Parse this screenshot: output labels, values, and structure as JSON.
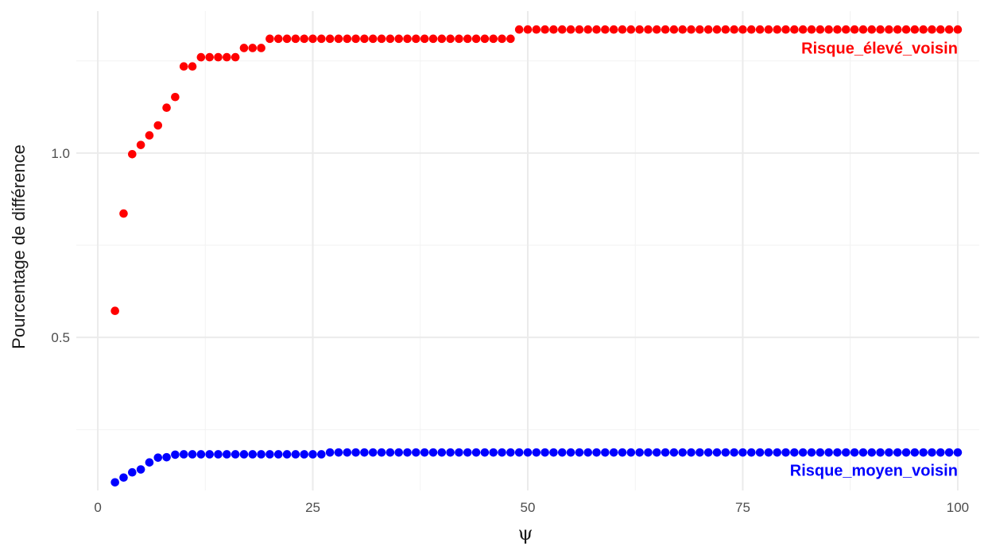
{
  "chart_data": {
    "type": "scatter",
    "xlabel": "ψ",
    "ylabel": "Pourcentage de différence",
    "xlim": [
      -2.5,
      102.5
    ],
    "ylim": [
      0.085,
      1.385
    ],
    "x_ticks": [
      0,
      25,
      50,
      75,
      100
    ],
    "y_ticks": [
      0.5,
      1.0
    ],
    "y_tick_labels": [
      "0.5",
      "1.0"
    ],
    "grid": true,
    "series": [
      {
        "name": "Risque_élevé_voisin",
        "color": "#ff0000",
        "x_start": 2,
        "y": [
          0.572,
          0.836,
          0.997,
          1.022,
          1.048,
          1.075,
          1.123,
          1.152,
          1.235,
          1.235,
          1.26,
          1.26,
          1.26,
          1.26,
          1.26,
          1.285,
          1.285,
          1.285,
          1.31,
          1.31,
          1.31,
          1.31,
          1.31,
          1.31,
          1.31,
          1.31,
          1.31,
          1.31,
          1.31,
          1.31,
          1.31,
          1.31,
          1.31,
          1.31,
          1.31,
          1.31,
          1.31,
          1.31,
          1.31,
          1.31,
          1.31,
          1.31,
          1.31,
          1.31,
          1.31,
          1.31,
          1.31,
          1.335,
          1.335,
          1.335,
          1.335,
          1.335,
          1.335,
          1.335,
          1.335,
          1.335,
          1.335,
          1.335,
          1.335,
          1.335,
          1.335,
          1.335,
          1.335,
          1.335,
          1.335,
          1.335,
          1.335,
          1.335,
          1.335,
          1.335,
          1.335,
          1.335,
          1.335,
          1.335,
          1.335,
          1.335,
          1.335,
          1.335,
          1.335,
          1.335,
          1.335,
          1.335,
          1.335,
          1.335,
          1.335,
          1.335,
          1.335,
          1.335,
          1.335,
          1.335,
          1.335,
          1.335,
          1.335,
          1.335,
          1.335,
          1.335,
          1.335,
          1.335,
          1.335
        ]
      },
      {
        "name": "Risque_moyen_voisin",
        "color": "#0000ff",
        "x_start": 2,
        "y": [
          0.107,
          0.12,
          0.134,
          0.142,
          0.161,
          0.174,
          0.175,
          0.182,
          0.183,
          0.183,
          0.183,
          0.183,
          0.183,
          0.183,
          0.183,
          0.183,
          0.183,
          0.183,
          0.183,
          0.183,
          0.183,
          0.183,
          0.183,
          0.183,
          0.183,
          0.188,
          0.188,
          0.188,
          0.188,
          0.188,
          0.188,
          0.188,
          0.188,
          0.188,
          0.188,
          0.188,
          0.188,
          0.188,
          0.188,
          0.188,
          0.188,
          0.188,
          0.188,
          0.188,
          0.188,
          0.188,
          0.188,
          0.188,
          0.188,
          0.188,
          0.188,
          0.188,
          0.188,
          0.188,
          0.188,
          0.188,
          0.188,
          0.188,
          0.188,
          0.188,
          0.188,
          0.188,
          0.188,
          0.188,
          0.188,
          0.188,
          0.188,
          0.188,
          0.188,
          0.188,
          0.188,
          0.188,
          0.188,
          0.188,
          0.188,
          0.188,
          0.188,
          0.188,
          0.188,
          0.188,
          0.188,
          0.188,
          0.188,
          0.188,
          0.188,
          0.188,
          0.188,
          0.188,
          0.188,
          0.188,
          0.188,
          0.188,
          0.188,
          0.188,
          0.188,
          0.188,
          0.188,
          0.188,
          0.188
        ]
      }
    ],
    "annotations": [
      {
        "text": "Risque_élevé_voisin",
        "color": "#ff0000",
        "x": 100,
        "y": 1.285,
        "anchor": "end"
      },
      {
        "text": "Risque_moyen_voisin",
        "color": "#0000ff",
        "x": 100,
        "y": 0.14,
        "anchor": "end"
      }
    ]
  }
}
